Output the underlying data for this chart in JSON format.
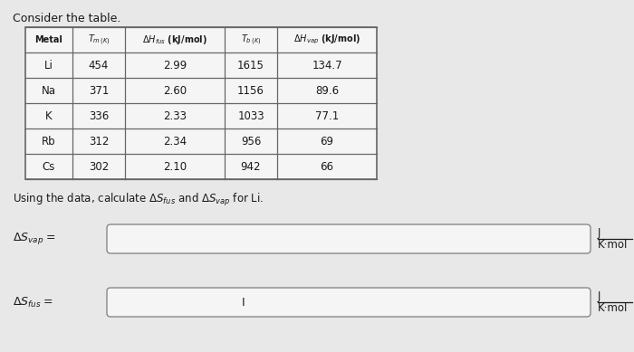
{
  "title": "Consider the table.",
  "header_texts": [
    "Metal",
    "$T_{m\\,(K)}$",
    "$\\Delta H_{fus}$ (kJ/mol)",
    "$T_{b\\,(K)}$",
    "$\\Delta H_{vap}$ (kJ/mol)"
  ],
  "rows": [
    [
      "Li",
      "454",
      "2.99",
      "1615",
      "134.7"
    ],
    [
      "Na",
      "371",
      "2.60",
      "1156",
      "89.6"
    ],
    [
      "K",
      "336",
      "2.33",
      "1033",
      "77.1"
    ],
    [
      "Rb",
      "312",
      "2.34",
      "956",
      "69"
    ],
    [
      "Cs",
      "302",
      "2.10",
      "942",
      "66"
    ]
  ],
  "instruction": "Using the data, calculate $\\Delta S_{fus}$ and $\\Delta S_{vap}$ for Li.",
  "bg_color": "#e8e8e8",
  "table_bg": "#f5f5f5",
  "box_bg": "#f5f5f5",
  "border_color": "#666666",
  "text_color": "#1a1a1a",
  "unit_J": "J",
  "unit_Kmol": "K·mol"
}
